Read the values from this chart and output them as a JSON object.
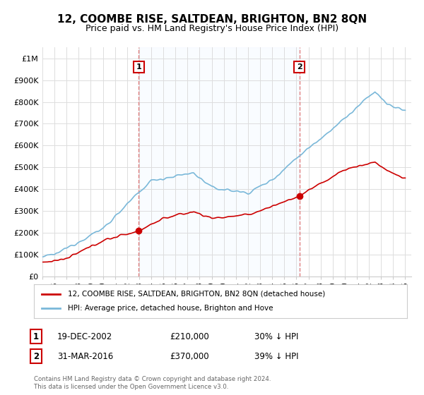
{
  "title": "12, COOMBE RISE, SALTDEAN, BRIGHTON, BN2 8QN",
  "subtitle": "Price paid vs. HM Land Registry's House Price Index (HPI)",
  "ylabel_ticks": [
    "£0",
    "£100K",
    "£200K",
    "£300K",
    "£400K",
    "£500K",
    "£600K",
    "£700K",
    "£800K",
    "£900K",
    "£1M"
  ],
  "ytick_values": [
    0,
    100000,
    200000,
    300000,
    400000,
    500000,
    600000,
    700000,
    800000,
    900000,
    1000000
  ],
  "ylim": [
    0,
    1050000
  ],
  "xlim_start": 1995.0,
  "xlim_end": 2025.5,
  "hpi_color": "#7ab8d9",
  "price_color": "#cc0000",
  "vline_color": "#e08080",
  "shade_color": "#ddeeff",
  "legend_label_price": "12, COOMBE RISE, SALTDEAN, BRIGHTON, BN2 8QN (detached house)",
  "legend_label_hpi": "HPI: Average price, detached house, Brighton and Hove",
  "transaction1_label": "1",
  "transaction1_date": "19-DEC-2002",
  "transaction1_price": "£210,000",
  "transaction1_hpi": "30% ↓ HPI",
  "transaction1_x": 2002.97,
  "transaction1_y": 210000,
  "transaction2_label": "2",
  "transaction2_date": "31-MAR-2016",
  "transaction2_price": "£370,000",
  "transaction2_hpi": "39% ↓ HPI",
  "transaction2_x": 2016.25,
  "transaction2_y": 370000,
  "footnote": "Contains HM Land Registry data © Crown copyright and database right 2024.\nThis data is licensed under the Open Government Licence v3.0.",
  "bg_color": "#ffffff",
  "grid_color": "#dddddd"
}
